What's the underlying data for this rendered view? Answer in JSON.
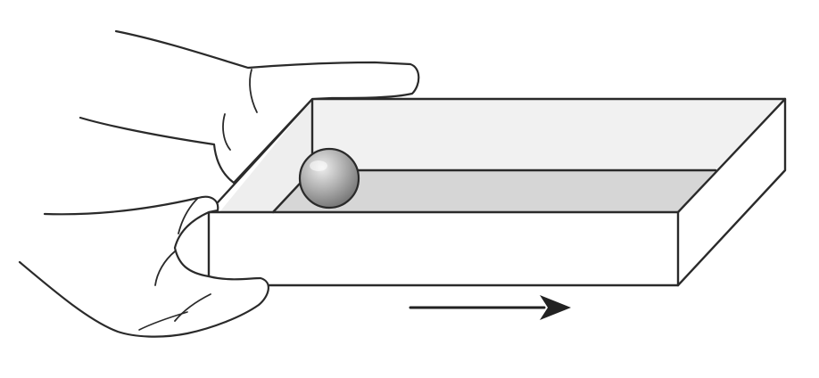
{
  "colors": {
    "background": "#ffffff",
    "outline": "#2a2a2a",
    "box_front": "#ffffff",
    "box_inner_back": "#f1f1f1",
    "box_inner_side": "#eeeeee",
    "box_floor": "#d6d6d6",
    "ball_light": "#eeeeee",
    "ball_mid": "#a9a9a9",
    "ball_dark": "#6e6e6e",
    "hand_fill": "#ffffff",
    "arrow": "#222222"
  },
  "icons": {
    "ball": "ball-icon",
    "arrow": "right-arrow-icon",
    "hands": "hand-icon"
  }
}
